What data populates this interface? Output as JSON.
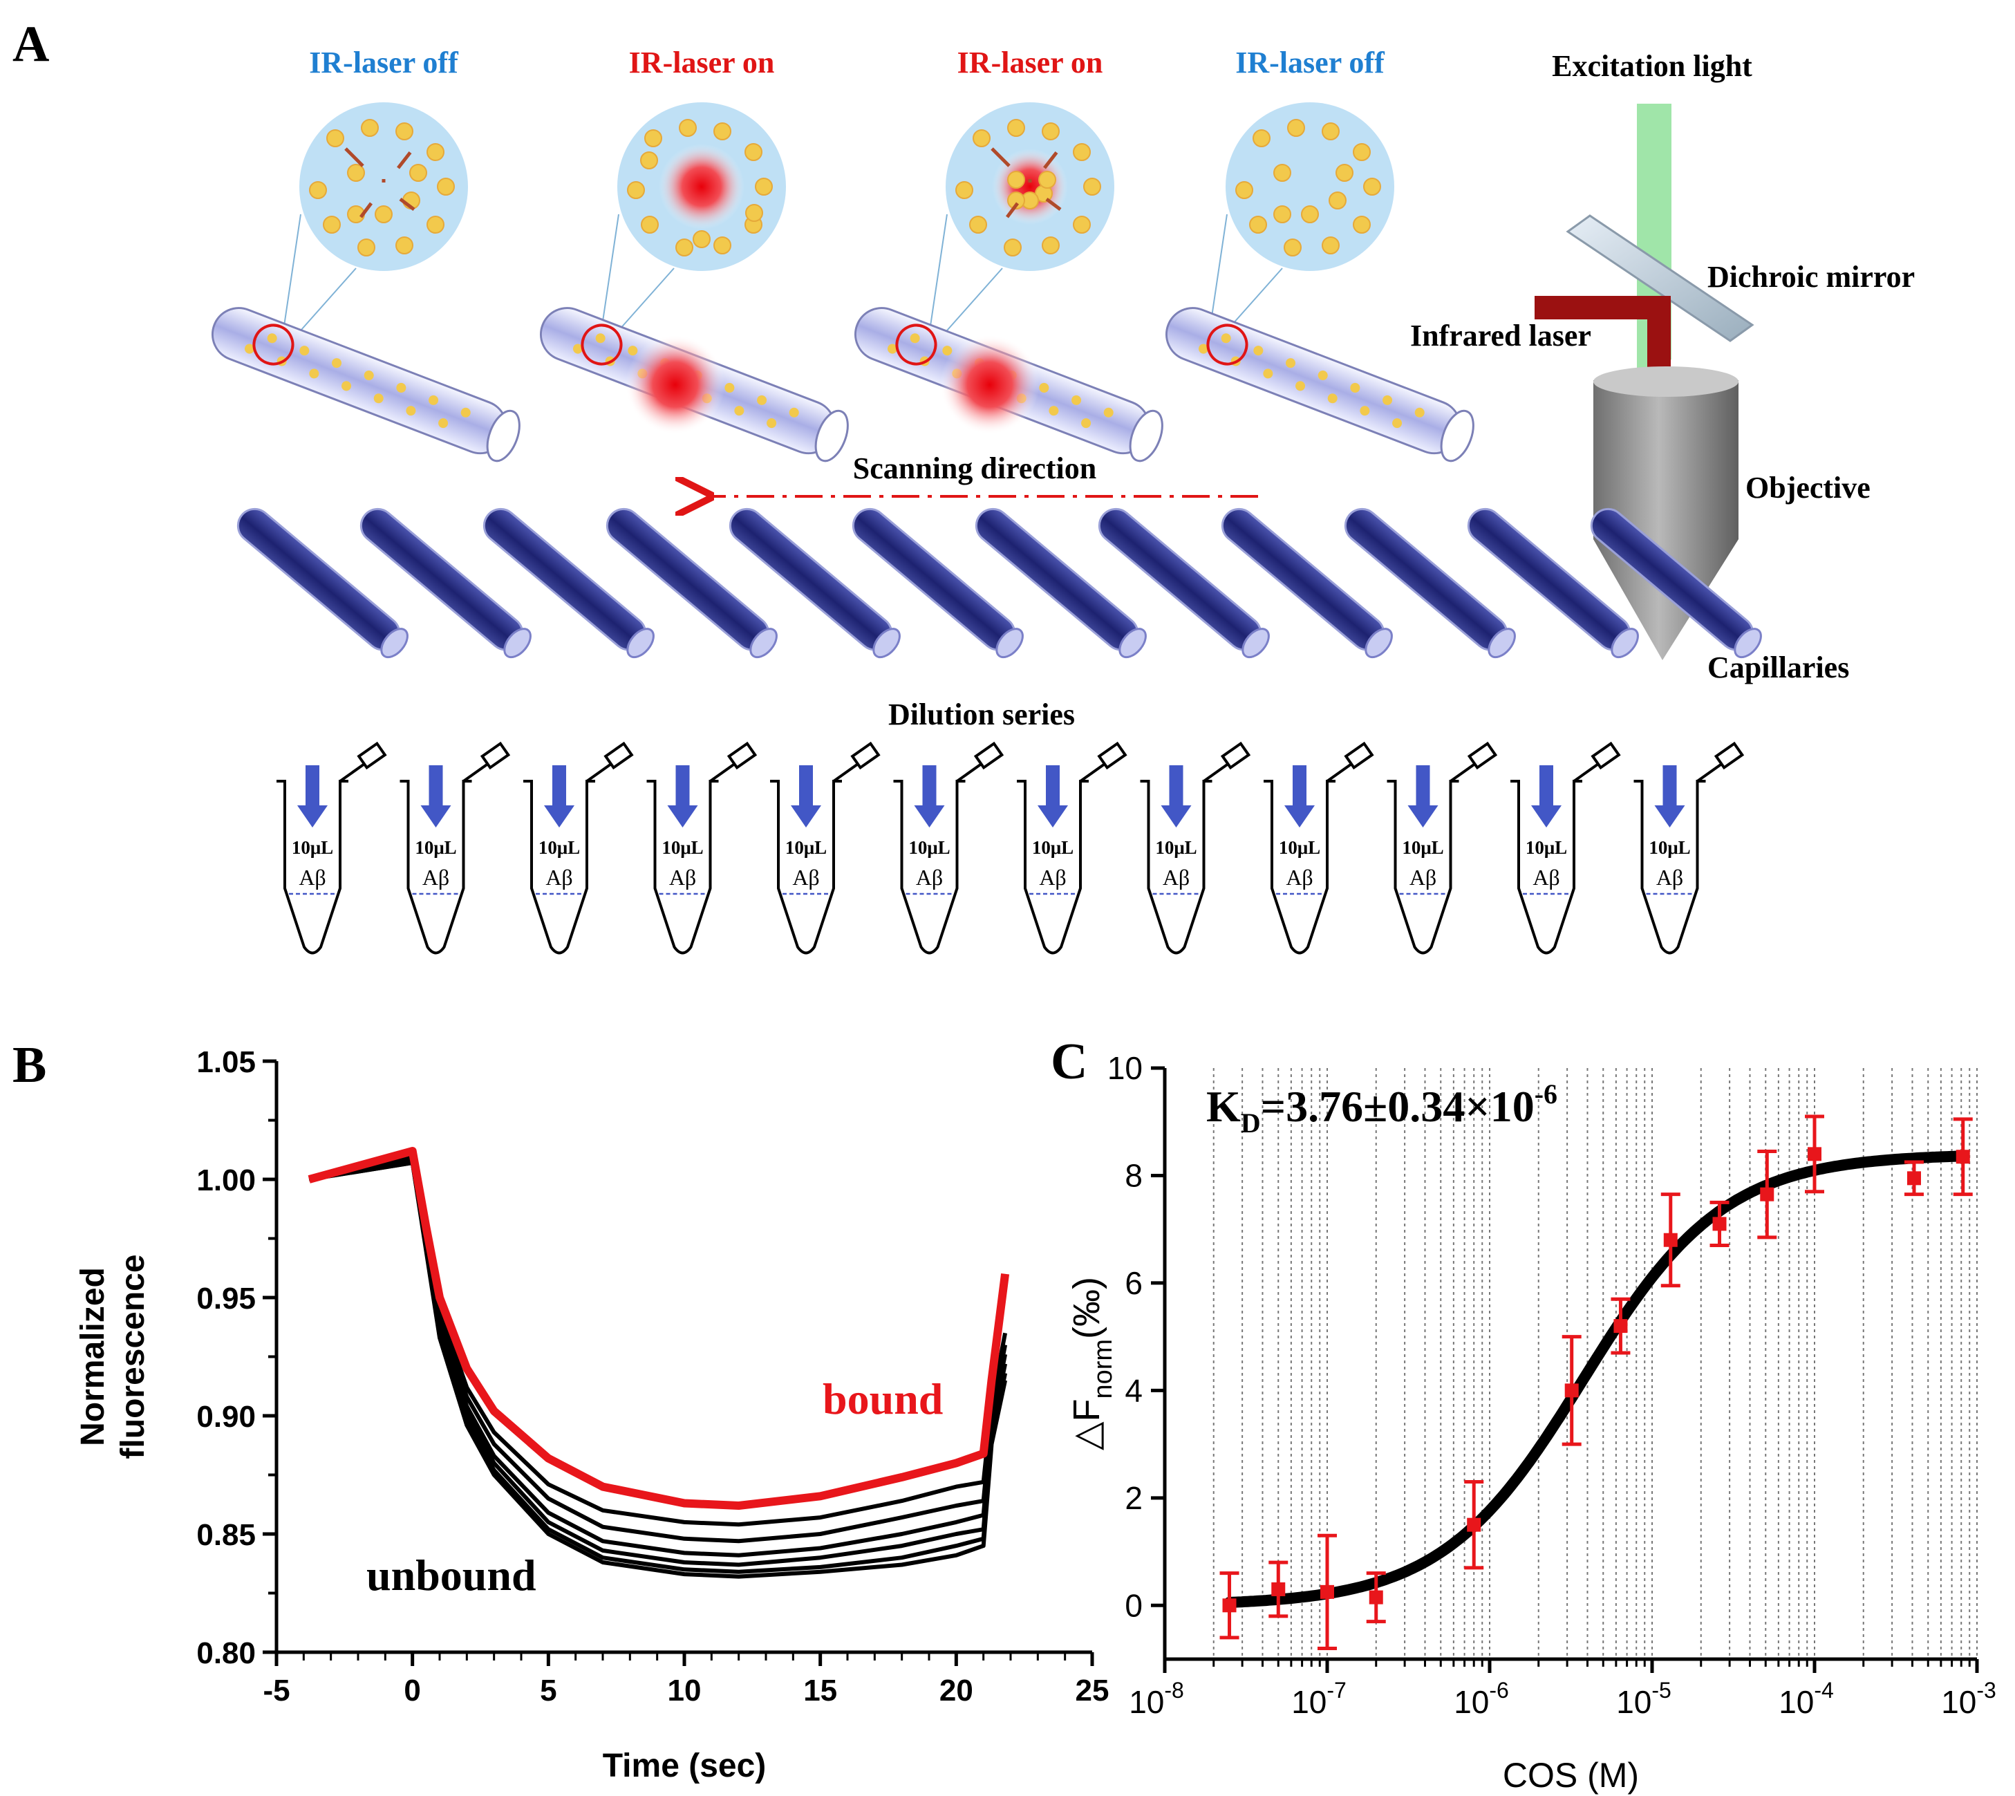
{
  "panel_labels": {
    "a": "A",
    "b": "B",
    "c": "C"
  },
  "schematic": {
    "laser_states": [
      "IR-laser off",
      "IR-laser on",
      "IR-laser on",
      "IR-laser off"
    ],
    "excitation_light": "Excitation light",
    "dichroic_mirror": "Dichroic mirror",
    "infrared_laser": "Infrared laser",
    "objective": "Objective",
    "capillaries": "Capillaries",
    "scanning_direction": "Scanning direction",
    "dilution_series": "Dilution series",
    "tube_volume": "10μL",
    "tube_sample": "Aβ",
    "tube_count": 12,
    "capillary_count": 12,
    "colors": {
      "off": "#1f7fd1",
      "on": "#e01515",
      "capillary": "#2a2f7a",
      "droplet": "#f2c94c",
      "bubble": "#bfe0f5",
      "beam": "#8fe09a",
      "laser": "#9b1111",
      "objective": "#8a8a8a"
    }
  },
  "chart_data": [
    {
      "type": "line",
      "title": "",
      "xlabel": "Time (sec)",
      "ylabel": "Normalized fluorescence",
      "xlim": [
        -5,
        25
      ],
      "ylim": [
        0.8,
        1.05
      ],
      "x_ticks": [
        -5,
        0,
        5,
        10,
        15,
        20,
        25
      ],
      "y_ticks": [
        0.8,
        0.85,
        0.9,
        0.95,
        1.0,
        1.05
      ],
      "x_tick_labels": [
        "-5",
        "0",
        "5",
        "10",
        "15",
        "20",
        "25"
      ],
      "y_tick_labels": [
        "0.80",
        "0.85",
        "0.90",
        "0.95",
        "1.00",
        "1.05"
      ],
      "annotations": {
        "bound": "bound",
        "unbound": "unbound"
      },
      "colors": {
        "bound": "#e8161b",
        "unbound": "#000000"
      },
      "series": [
        {
          "name": "bound",
          "x": [
            -3.8,
            0,
            0.5,
            1,
            2,
            3,
            5,
            7,
            10,
            12,
            15,
            18,
            20,
            21,
            21.3,
            21.8
          ],
          "values": [
            1.0,
            1.012,
            0.98,
            0.95,
            0.92,
            0.902,
            0.882,
            0.87,
            0.863,
            0.862,
            0.866,
            0.874,
            0.88,
            0.884,
            0.915,
            0.96
          ]
        },
        {
          "name": "unbound 1",
          "x": [
            -3.8,
            0,
            0.5,
            1,
            2,
            3,
            5,
            7,
            10,
            12,
            15,
            18,
            20,
            21,
            21.3,
            21.8
          ],
          "values": [
            1.0,
            1.01,
            0.977,
            0.945,
            0.912,
            0.893,
            0.871,
            0.86,
            0.855,
            0.854,
            0.857,
            0.864,
            0.87,
            0.872,
            0.905,
            0.935
          ]
        },
        {
          "name": "unbound 2",
          "x": [
            -3.8,
            0,
            0.5,
            1,
            2,
            3,
            5,
            7,
            10,
            12,
            15,
            18,
            20,
            21,
            21.3,
            21.8
          ],
          "values": [
            1.0,
            1.009,
            0.975,
            0.942,
            0.908,
            0.888,
            0.865,
            0.853,
            0.848,
            0.847,
            0.85,
            0.857,
            0.862,
            0.864,
            0.9,
            0.93
          ]
        },
        {
          "name": "unbound 3",
          "x": [
            -3.8,
            0,
            0.5,
            1,
            2,
            3,
            5,
            7,
            10,
            12,
            15,
            18,
            20,
            21,
            21.3,
            21.8
          ],
          "values": [
            1.0,
            1.008,
            0.973,
            0.939,
            0.904,
            0.883,
            0.859,
            0.847,
            0.842,
            0.841,
            0.844,
            0.85,
            0.855,
            0.858,
            0.897,
            0.926
          ]
        },
        {
          "name": "unbound 4",
          "x": [
            -3.8,
            0,
            0.5,
            1,
            2,
            3,
            5,
            7,
            10,
            12,
            15,
            18,
            20,
            21,
            21.3,
            21.8
          ],
          "values": [
            1.0,
            1.008,
            0.972,
            0.937,
            0.901,
            0.88,
            0.855,
            0.843,
            0.838,
            0.837,
            0.84,
            0.845,
            0.85,
            0.852,
            0.894,
            0.922
          ]
        },
        {
          "name": "unbound 5",
          "x": [
            -3.8,
            0,
            0.5,
            1,
            2,
            3,
            5,
            7,
            10,
            12,
            15,
            18,
            20,
            21,
            21.3,
            21.8
          ],
          "values": [
            1.0,
            1.007,
            0.971,
            0.935,
            0.898,
            0.877,
            0.852,
            0.84,
            0.835,
            0.834,
            0.836,
            0.84,
            0.845,
            0.848,
            0.89,
            0.918
          ]
        },
        {
          "name": "unbound 6",
          "x": [
            -3.8,
            0,
            0.5,
            1,
            2,
            3,
            5,
            7,
            10,
            12,
            15,
            18,
            20,
            21,
            21.3,
            21.8
          ],
          "values": [
            1.0,
            1.007,
            0.97,
            0.933,
            0.896,
            0.875,
            0.85,
            0.838,
            0.833,
            0.832,
            0.834,
            0.837,
            0.841,
            0.845,
            0.888,
            0.915
          ]
        }
      ]
    },
    {
      "type": "scatter",
      "title": "KD=3.76±0.34×10-6",
      "kd_text": {
        "k": "K",
        "sub": "D",
        "main": "=3.76±0.34×10",
        "sup": "-6"
      },
      "xlabel": "COS (M)",
      "ylabel": {
        "prefix": "△F",
        "sub": "norm",
        "suffix": "(‰)"
      },
      "xscale": "log",
      "xlim_exponent": [
        -8,
        -3
      ],
      "ylim": [
        -1,
        10
      ],
      "y_ticks": [
        0,
        2,
        4,
        6,
        8,
        10
      ],
      "y_tick_labels": [
        "0",
        "2",
        "4",
        "6",
        "8",
        "10"
      ],
      "x_tick_labels": [
        {
          "base": "10",
          "exp": "-8"
        },
        {
          "base": "10",
          "exp": "-7"
        },
        {
          "base": "10",
          "exp": "-6"
        },
        {
          "base": "10",
          "exp": "-5"
        },
        {
          "base": "10",
          "exp": "-4"
        },
        {
          "base": "10",
          "exp": "-3"
        }
      ],
      "grid": "vertical minor dotted",
      "colors": {
        "points": "#e8161b",
        "fit": "#000000"
      },
      "fit": {
        "kd": 3.76e-06,
        "bottom": 0.0,
        "top": 8.4
      },
      "points": [
        {
          "x": 2.5e-08,
          "y": 0.0,
          "err": 0.6
        },
        {
          "x": 5e-08,
          "y": 0.3,
          "err": 0.5
        },
        {
          "x": 1e-07,
          "y": 0.25,
          "err": 1.05
        },
        {
          "x": 2e-07,
          "y": 0.15,
          "err": 0.45
        },
        {
          "x": 8e-07,
          "y": 1.5,
          "err": 0.8
        },
        {
          "x": 3.2e-06,
          "y": 4.0,
          "err": 1.0
        },
        {
          "x": 6.4e-06,
          "y": 5.2,
          "err": 0.5
        },
        {
          "x": 1.3e-05,
          "y": 6.8,
          "err": 0.85
        },
        {
          "x": 2.6e-05,
          "y": 7.1,
          "err": 0.4
        },
        {
          "x": 5.1e-05,
          "y": 7.65,
          "err": 0.8
        },
        {
          "x": 0.0001,
          "y": 8.4,
          "err": 0.7
        },
        {
          "x": 0.00041,
          "y": 7.95,
          "err": 0.3
        },
        {
          "x": 0.00082,
          "y": 8.35,
          "err": 0.7
        }
      ]
    }
  ]
}
